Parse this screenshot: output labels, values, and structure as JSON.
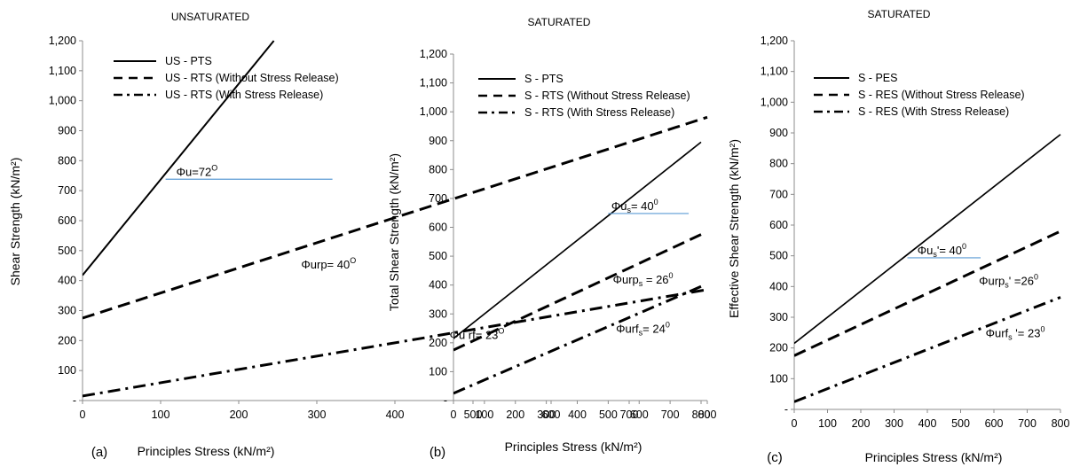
{
  "chart_data": [
    {
      "type": "line",
      "panel_label": "(a)",
      "title": "UNSATURATED",
      "xlabel": "Principles Stress  (kN/m²)",
      "ylabel": "Shear Strength  (kN/m²)",
      "xlim": [
        0,
        800
      ],
      "ylim": [
        0,
        1200
      ],
      "x_ticks": [
        "0",
        "100",
        "200",
        "300",
        "400",
        "500",
        "600",
        "700",
        "800"
      ],
      "y_ticks": [
        "-",
        "100",
        "200",
        "300",
        "400",
        "500",
        "600",
        "700",
        "800",
        "900",
        "1,000",
        "1,100",
        "1,200"
      ],
      "legend_position": "top-left",
      "series": [
        {
          "name": "US - PTS",
          "style": "solid",
          "x": [
            0,
            245
          ],
          "y": [
            418,
            1200
          ]
        },
        {
          "name": "US - RTS (Without Stress Release)",
          "style": "dashed",
          "x": [
            0,
            800
          ],
          "y": [
            275,
            945
          ]
        },
        {
          "name": "US - RTS (With Stress Release)",
          "style": "dashdot",
          "x": [
            0,
            800
          ],
          "y": [
            15,
            370
          ]
        }
      ],
      "annotations": [
        {
          "text": "Φu=72",
          "sup": "O",
          "x": 120,
          "y": 750,
          "underline_to_x": 320
        },
        {
          "text": "Φurp= 40",
          "sup": "O",
          "x": 280,
          "y": 440
        },
        {
          "text": "Φu rf= 23",
          "sup": "O",
          "x": 470,
          "y": 205
        }
      ]
    },
    {
      "type": "line",
      "panel_label": "(b)",
      "title": "SATURATED",
      "xlabel": "Principles Stress (kN/m²)",
      "ylabel": "Total Shear Strength (kN/m²)",
      "xlim": [
        0,
        800
      ],
      "ylim": [
        0,
        1200
      ],
      "x_ticks": [
        "0",
        "100",
        "200",
        "300",
        "400",
        "500",
        "600",
        "700",
        "800"
      ],
      "y_ticks": [
        "-",
        "100",
        "200",
        "300",
        "400",
        "500",
        "600",
        "700",
        "800",
        "900",
        "1,000",
        "1,100",
        "1,200"
      ],
      "legend_position": "top-right",
      "series": [
        {
          "name": "S - PTS",
          "style": "solid",
          "x": [
            0,
            800
          ],
          "y": [
            215,
            895
          ]
        },
        {
          "name": "S - RTS (Without Stress Release)",
          "style": "dashed",
          "x": [
            0,
            800
          ],
          "y": [
            175,
            575
          ]
        },
        {
          "name": "S - RTS (With Stress Release)",
          "style": "dashdot",
          "x": [
            0,
            800
          ],
          "y": [
            25,
            395
          ]
        }
      ],
      "annotations": [
        {
          "text": "Φu",
          "sub": "s",
          "text2": "= 40",
          "sup": "0",
          "x": 510,
          "y": 660,
          "underline_from_x": 500,
          "underline_to_x": 760
        },
        {
          "text": "Φurp",
          "sub": "s",
          "text2": " = 26",
          "sup": "0",
          "x": 515,
          "y": 405
        },
        {
          "text": "Φurf",
          "sub": "s",
          "text2": "= 24",
          "sup": "0",
          "x": 525,
          "y": 235
        }
      ]
    },
    {
      "type": "line",
      "panel_label": "(c)",
      "title": "SATURATED",
      "xlabel": "Principles Stress (kN/m²)",
      "ylabel": "Effective Shear Strength (kN/m²)",
      "xlim": [
        0,
        800
      ],
      "ylim": [
        0,
        1200
      ],
      "x_ticks": [
        "0",
        "100",
        "200",
        "300",
        "400",
        "500",
        "600",
        "700",
        "800"
      ],
      "y_ticks": [
        "-",
        "100",
        "200",
        "300",
        "400",
        "500",
        "600",
        "700",
        "800",
        "900",
        "1,000",
        "1,100",
        "1,200"
      ],
      "legend_position": "top-right",
      "series": [
        {
          "name": "S - PES",
          "style": "solid",
          "x": [
            0,
            800
          ],
          "y": [
            215,
            895
          ]
        },
        {
          "name": "S - RES (Without Stress Release)",
          "style": "dashed",
          "x": [
            0,
            800
          ],
          "y": [
            175,
            580
          ]
        },
        {
          "name": "S - RES (With Stress Release)",
          "style": "dashdot",
          "x": [
            0,
            800
          ],
          "y": [
            25,
            365
          ]
        }
      ],
      "annotations": [
        {
          "text": "Φu",
          "sub": "s",
          "text2": "'= 40",
          "sup": "0",
          "x": 370,
          "y": 505,
          "underline_from_x": 340,
          "underline_to_x": 560
        },
        {
          "text": "Φurp",
          "sub": "s",
          "text2": "' =26",
          "sup": "0",
          "x": 555,
          "y": 405
        },
        {
          "text": "Φurf",
          "sub": "s",
          "text2": " '= 23",
          "sup": "0",
          "x": 575,
          "y": 235
        }
      ]
    }
  ]
}
